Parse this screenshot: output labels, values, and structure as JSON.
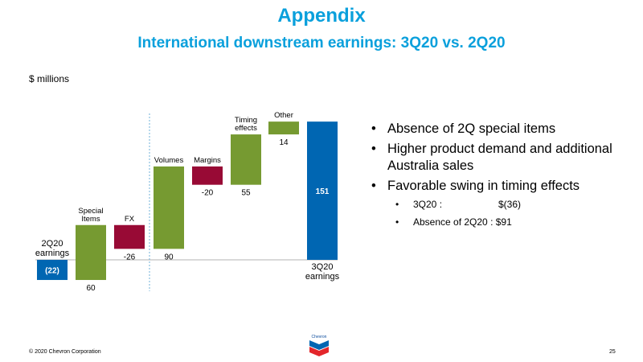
{
  "header": {
    "title": "Appendix",
    "subtitle": "International downstream earnings: 3Q20 vs. 2Q20"
  },
  "chart_data": {
    "type": "bar",
    "unit": "$ millions",
    "bars": [
      {
        "label": "2Q20\nearnings",
        "start": 0,
        "end": -22,
        "value_text": "(22)",
        "kind": "total"
      },
      {
        "label": "Special\nItems",
        "start": -22,
        "end": 38,
        "value_text": "60",
        "kind": "increase"
      },
      {
        "label": "FX",
        "start": 38,
        "end": 12,
        "value_text": "-26",
        "kind": "decrease"
      },
      {
        "label": "Volumes",
        "start": 12,
        "end": 102,
        "value_text": "90",
        "kind": "increase"
      },
      {
        "label": "Margins",
        "start": 102,
        "end": 82,
        "value_text": "-20",
        "kind": "decrease"
      },
      {
        "label": "Timing\neffects",
        "start": 82,
        "end": 137,
        "value_text": "55",
        "kind": "increase"
      },
      {
        "label": "Other",
        "start": 137,
        "end": 151,
        "value_text": "14",
        "kind": "increase"
      },
      {
        "label": "3Q20\nearnings",
        "start": 0,
        "end": 151,
        "value_text": "151",
        "kind": "total"
      }
    ],
    "colors": {
      "total": "#0066b2",
      "increase": "#769a31",
      "decrease": "#980a35"
    }
  },
  "bullets": [
    {
      "text": "Absence of 2Q special items",
      "level": 1
    },
    {
      "text": "Higher product demand and additional Australia sales",
      "level": 1
    },
    {
      "text": "Favorable swing in timing effects",
      "level": 1
    },
    {
      "label": "3Q20 :",
      "value": "$(36)",
      "level": 2
    },
    {
      "label": "Absence of 2Q20 :",
      "value": "$91",
      "level": 2
    }
  ],
  "footer": {
    "copyright": "© 2020 Chevron Corporation",
    "page_number": "25",
    "logo_text": "Chevron"
  }
}
